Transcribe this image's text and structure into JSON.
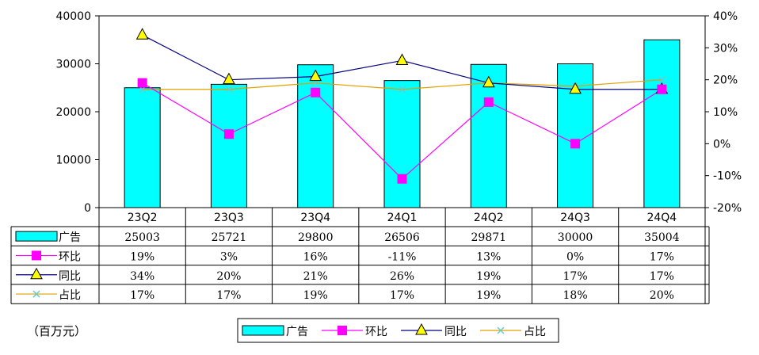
{
  "unit_label": "（百万元）",
  "chart_data": {
    "type": "bar",
    "categories": [
      "23Q2",
      "23Q3",
      "23Q4",
      "24Q1",
      "24Q2",
      "24Q3",
      "24Q4"
    ],
    "left_axis": {
      "min": 0,
      "max": 40000,
      "ticks": [
        "0",
        "10000",
        "20000",
        "30000",
        "40000"
      ]
    },
    "right_axis": {
      "min": -20,
      "max": 40,
      "ticks": [
        "-20%",
        "-10%",
        "0%",
        "10%",
        "20%",
        "30%",
        "40%"
      ]
    },
    "series": [
      {
        "name": "广告",
        "kind": "bar",
        "axis": "left",
        "color": "#00FFFF",
        "values": [
          25003,
          25721,
          29800,
          26506,
          29871,
          30000,
          35004
        ],
        "labels": [
          "25003",
          "25721",
          "29800",
          "26506",
          "29871",
          "30000",
          "35004"
        ]
      },
      {
        "name": "环比",
        "kind": "line",
        "axis": "right",
        "marker": "square",
        "color": "#FF00FF",
        "values": [
          19,
          3,
          16,
          -11,
          13,
          0,
          17
        ],
        "labels": [
          "19%",
          "3%",
          "16%",
          "-11%",
          "13%",
          "0%",
          "17%"
        ]
      },
      {
        "name": "同比",
        "kind": "line",
        "axis": "right",
        "marker": "triangle",
        "color": "#000080",
        "marker_fill": "#FFFF00",
        "values": [
          34,
          20,
          21,
          26,
          19,
          17,
          17
        ],
        "labels": [
          "34%",
          "20%",
          "21%",
          "26%",
          "19%",
          "17%",
          "17%"
        ]
      },
      {
        "name": "占比",
        "kind": "line",
        "axis": "right",
        "marker": "x",
        "color": "#E0A000",
        "marker_color": "#66CCCC",
        "values": [
          17,
          17,
          19,
          17,
          19,
          18,
          20
        ],
        "labels": [
          "17%",
          "17%",
          "19%",
          "17%",
          "19%",
          "18%",
          "20%"
        ]
      }
    ],
    "legend_placement": "bottom",
    "data_table": true,
    "grid": false
  }
}
